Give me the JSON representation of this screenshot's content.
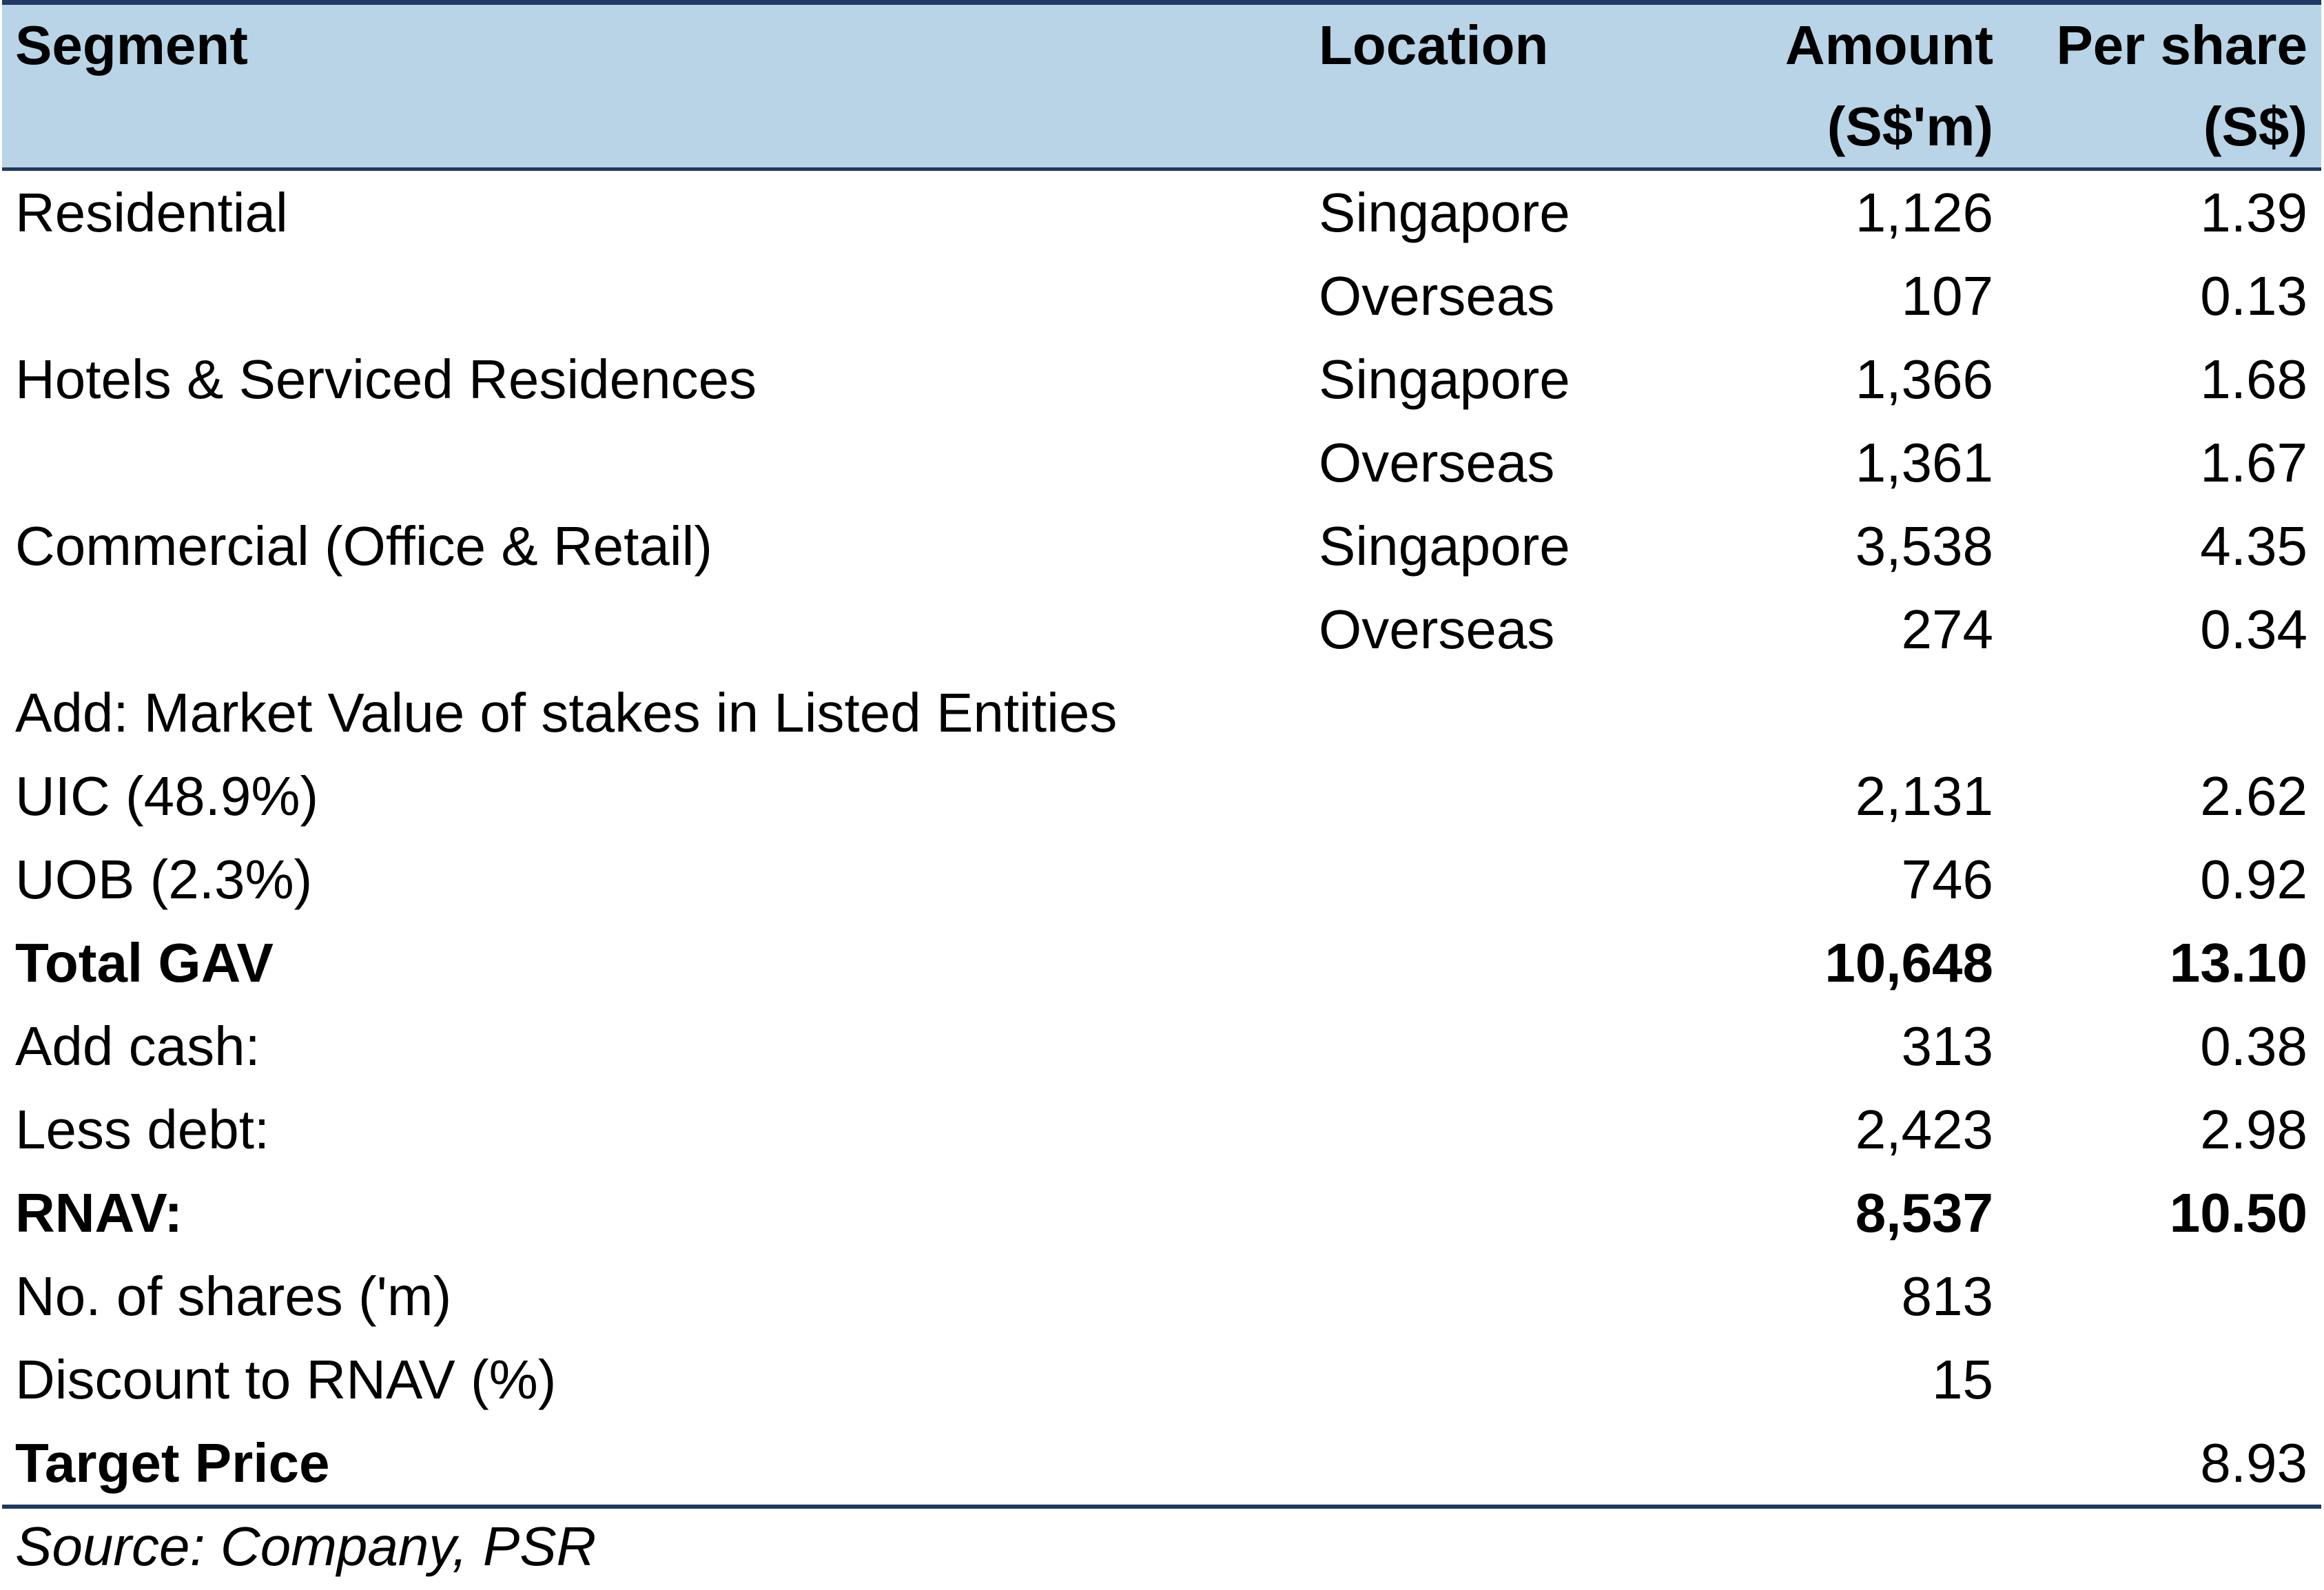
{
  "table": {
    "header": {
      "segment": "Segment",
      "location": "Location",
      "amount": {
        "line1": "Amount",
        "line2": "(S$'m)"
      },
      "per_share": {
        "line1": "Per share",
        "line2": "(S$)"
      }
    },
    "rows": [
      {
        "segment": "Residential",
        "location": "Singapore",
        "amount": "1,126",
        "per_share": "1.39"
      },
      {
        "location": "Overseas",
        "amount": "107",
        "per_share": "0.13"
      },
      {
        "segment": "Hotels & Serviced Residences",
        "location": "Singapore",
        "amount": "1,366",
        "per_share": "1.68"
      },
      {
        "location": "Overseas",
        "amount": "1,361",
        "per_share": "1.67"
      },
      {
        "segment": "Commercial (Office & Retail)",
        "location": "Singapore",
        "amount": "3,538",
        "per_share": "4.35"
      },
      {
        "location": "Overseas",
        "amount": "274",
        "per_share": "0.34"
      },
      {
        "segment": "Add: Market Value of stakes in Listed Entities"
      },
      {
        "segment": "UIC (48.9%)",
        "amount": "2,131",
        "per_share": "2.62"
      },
      {
        "segment": "UOB (2.3%)",
        "amount": "746",
        "per_share": "0.92"
      },
      {
        "segment": "Total GAV",
        "amount": "10,648",
        "per_share": "13.10",
        "bold_label": true,
        "bold_values": true
      },
      {
        "segment": "Add cash:",
        "amount": "313",
        "per_share": "0.38"
      },
      {
        "segment": "Less debt:",
        "amount": "2,423",
        "per_share": "2.98"
      },
      {
        "segment": "RNAV:",
        "amount": "8,537",
        "per_share": "10.50",
        "bold_label": true,
        "bold_values": true
      },
      {
        "segment": "No. of shares ('m)",
        "amount": "813"
      },
      {
        "segment": "Discount to RNAV (%)",
        "amount": "15"
      },
      {
        "segment": "Target Price",
        "per_share": "8.93",
        "bold_label": true,
        "bold_values": false
      }
    ]
  },
  "source": "Source: Company, PSR",
  "colors": {
    "header_bg": "#b8d4e6",
    "rule": "#1f3864",
    "text": "#000000"
  }
}
